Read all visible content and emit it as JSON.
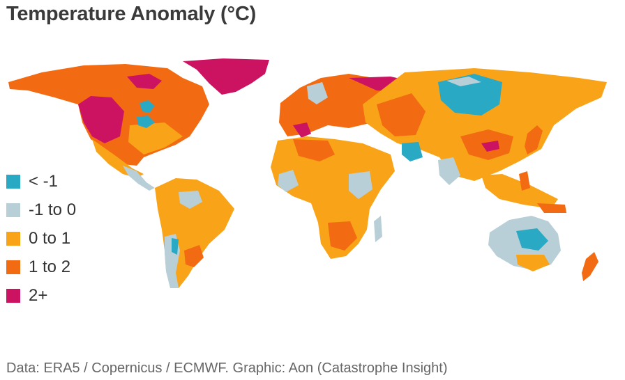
{
  "title": "Temperature Anomaly (°C)",
  "legend": {
    "items": [
      {
        "label": "< -1",
        "color": "#29a9c4"
      },
      {
        "label": "-1 to 0",
        "color": "#b9cfd7"
      },
      {
        "label": "0 to 1",
        "color": "#f9a318"
      },
      {
        "label": "1 to 2",
        "color": "#f26b12"
      },
      {
        "label": "2+",
        "color": "#cc1361"
      }
    ]
  },
  "footer": {
    "source": "Data: ERA5 / Copernicus / ECMWF.  Graphic: Aon (Catastrophe Insight)"
  }
}
